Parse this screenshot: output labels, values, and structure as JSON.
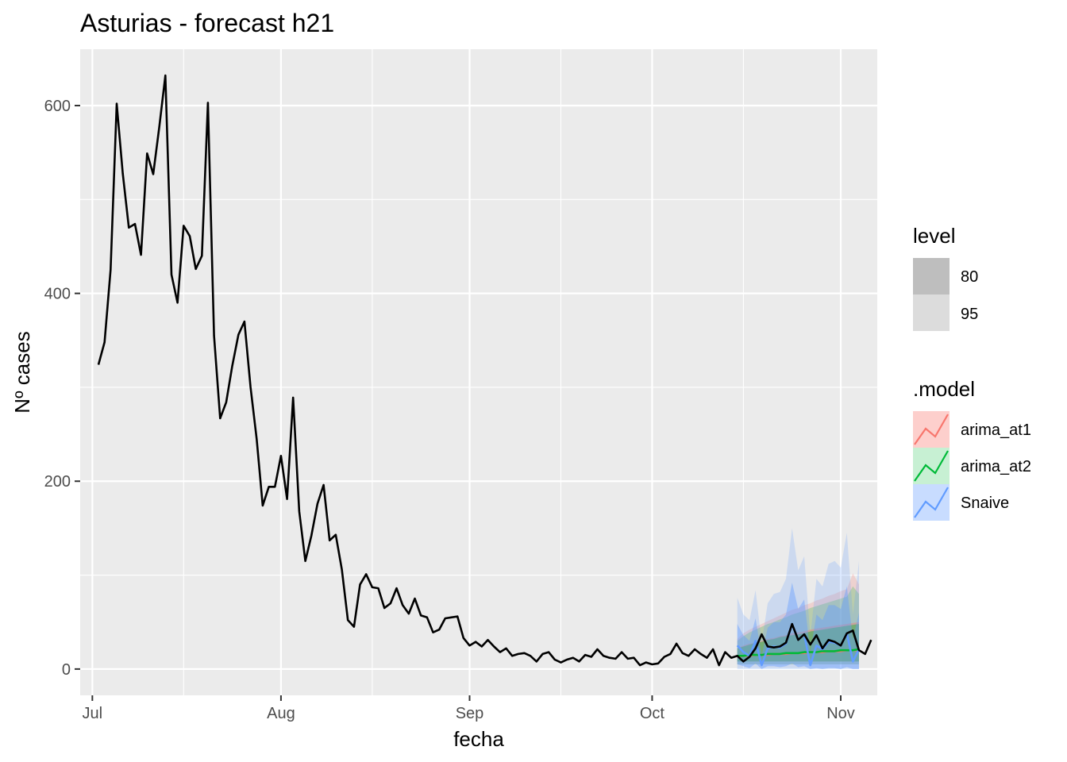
{
  "chart_data": {
    "type": "line",
    "title": "Asturias - forecast h21",
    "xlabel": "fecha",
    "ylabel": "Nº cases",
    "x_range": [
      "2020-06-29",
      "2020-11-07"
    ],
    "ylim": [
      -28,
      660
    ],
    "x_ticks": [
      {
        "date": "2020-07-01",
        "label": "Jul"
      },
      {
        "date": "2020-08-01",
        "label": "Aug"
      },
      {
        "date": "2020-09-01",
        "label": "Sep"
      },
      {
        "date": "2020-10-01",
        "label": "Oct"
      },
      {
        "date": "2020-11-01",
        "label": "Nov"
      }
    ],
    "y_ticks": [
      0,
      200,
      400,
      600
    ],
    "x_minor_gridlines": [
      "2020-07-16",
      "2020-08-16",
      "2020-09-16",
      "2020-10-16"
    ],
    "y_minor_gridlines": [
      100,
      300,
      500
    ],
    "grid": true,
    "observed": {
      "start": "2020-07-02",
      "values": [
        324,
        348,
        425,
        602,
        528,
        470,
        474,
        441,
        549,
        527,
        577,
        632,
        420,
        390,
        472,
        461,
        426,
        440,
        603,
        355,
        267,
        284,
        323,
        356,
        370,
        300,
        245,
        174,
        194,
        194,
        227,
        181,
        289,
        168,
        115,
        142,
        176,
        196,
        137,
        143,
        106,
        52,
        45,
        90,
        101,
        87,
        86,
        65,
        70,
        86,
        68,
        59,
        75,
        57,
        55,
        39,
        42,
        54,
        55,
        56,
        33,
        25,
        29,
        24,
        31,
        24,
        18,
        22,
        14,
        16,
        17,
        14,
        8,
        16,
        18,
        10,
        7,
        10,
        12,
        8,
        15,
        13,
        21,
        14,
        12,
        11,
        18,
        11,
        12,
        4,
        7,
        5,
        6,
        13,
        16,
        27,
        17,
        14,
        21,
        16,
        12,
        21,
        4,
        18,
        12,
        14,
        8,
        13,
        22,
        37,
        24,
        23,
        24,
        28,
        48,
        31,
        37,
        26,
        36,
        22,
        31,
        29,
        25,
        38,
        41,
        20,
        16,
        31
      ]
    },
    "forecast": {
      "start": "2020-10-15",
      "models": [
        {
          "name": "arima_at1",
          "color": "#F8766D",
          "mean": [
            13,
            14,
            14,
            15,
            15,
            15,
            16,
            16,
            16,
            17,
            17,
            17,
            18,
            18,
            18,
            19,
            19,
            19,
            20,
            20,
            20
          ],
          "lo80": [
            8,
            8,
            8,
            8,
            8,
            8,
            8,
            8,
            8,
            8,
            8,
            8,
            8,
            8,
            8,
            8,
            8,
            8,
            8,
            8,
            8
          ],
          "hi80": [
            22,
            25,
            27,
            28,
            30,
            32,
            33,
            35,
            36,
            38,
            39,
            40,
            42,
            43,
            44,
            45,
            46,
            47,
            48,
            49,
            50
          ],
          "lo95": [
            5,
            5,
            5,
            5,
            5,
            5,
            5,
            5,
            5,
            5,
            5,
            5,
            5,
            5,
            5,
            5,
            5,
            5,
            5,
            5,
            5
          ],
          "hi95": [
            32,
            38,
            42,
            45,
            48,
            51,
            54,
            57,
            60,
            63,
            65,
            68,
            70,
            73,
            75,
            78,
            80,
            83,
            85,
            102,
            90
          ]
        },
        {
          "name": "arima_at2",
          "color": "#00BA38",
          "mean": [
            14,
            14,
            15,
            15,
            15,
            16,
            16,
            16,
            17,
            17,
            17,
            18,
            18,
            18,
            19,
            19,
            19,
            20,
            20,
            20,
            21
          ],
          "lo80": [
            8,
            8,
            8,
            8,
            8,
            8,
            8,
            8,
            8,
            8,
            8,
            8,
            8,
            8,
            8,
            8,
            8,
            8,
            8,
            8,
            8
          ],
          "hi80": [
            22,
            24,
            26,
            28,
            29,
            31,
            32,
            34,
            35,
            36,
            37,
            38,
            40,
            41,
            42,
            43,
            44,
            45,
            46,
            47,
            48
          ],
          "lo95": [
            5,
            5,
            5,
            5,
            5,
            5,
            5,
            5,
            5,
            5,
            5,
            5,
            5,
            5,
            5,
            5,
            5,
            5,
            5,
            5,
            5
          ],
          "hi95": [
            30,
            35,
            39,
            42,
            45,
            48,
            50,
            53,
            55,
            58,
            60,
            62,
            65,
            67,
            69,
            71,
            73,
            75,
            77,
            88,
            80
          ]
        },
        {
          "name": "Snaive",
          "color": "#619CFF",
          "mean": [
            25,
            18,
            14,
            30,
            4,
            22,
            24,
            23,
            27,
            48,
            31,
            37,
            4,
            25,
            21,
            29,
            28,
            25,
            38,
            8,
            21
          ],
          "lo80": [
            5,
            3,
            1,
            6,
            0,
            3,
            3,
            2,
            3,
            6,
            2,
            3,
            0,
            1,
            0,
            1,
            1,
            0,
            2,
            0,
            0
          ],
          "hi80": [
            48,
            36,
            30,
            54,
            14,
            44,
            50,
            50,
            58,
            92,
            64,
            74,
            18,
            58,
            52,
            68,
            68,
            64,
            88,
            32,
            60
          ],
          "lo95": [
            0,
            0,
            0,
            0,
            0,
            0,
            0,
            0,
            0,
            0,
            0,
            0,
            0,
            0,
            0,
            0,
            0,
            0,
            0,
            0,
            0
          ],
          "hi95": [
            76,
            58,
            52,
            84,
            28,
            70,
            80,
            82,
            96,
            150,
            105,
            120,
            35,
            96,
            88,
            112,
            115,
            108,
            145,
            58,
            115
          ]
        }
      ]
    },
    "observed_color": "#000000",
    "legends": [
      {
        "title": "level",
        "items": [
          {
            "label": "80",
            "fill": "#BEBEBE"
          },
          {
            "label": "95",
            "fill": "#DCDCDC"
          }
        ]
      },
      {
        "title": ".model",
        "items": [
          {
            "label": "arima_at1",
            "color": "#F8766D"
          },
          {
            "label": "arima_at2",
            "color": "#00BA38"
          },
          {
            "label": "Snaive",
            "color": "#619CFF"
          }
        ]
      }
    ],
    "legend_position": "right",
    "panel_background": "#EBEBEB",
    "gridline_color": "#FFFFFF"
  }
}
